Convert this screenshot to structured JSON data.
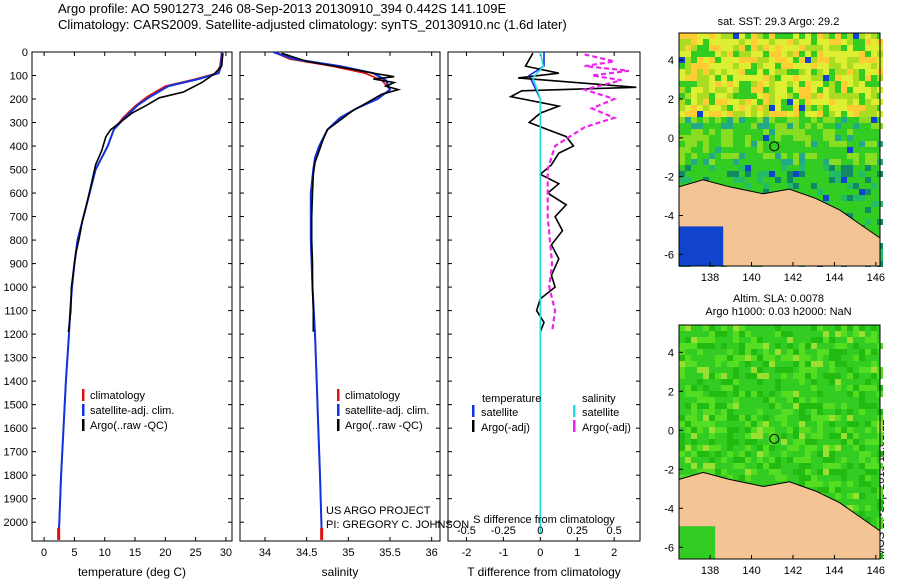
{
  "header": {
    "line1": "Argo profile: AO 5901273_246 08-Sep-2013 20130910_394 0.442S 141.109E",
    "line2": "Climatology: CARS2009. Satellite-adjusted climatology: synTS_20130910.nc (1.6d later)"
  },
  "colors": {
    "climatology": "#dd1111",
    "satellite": "#1133dd",
    "argo": "#000000",
    "sat_cyan": "#22dddd",
    "argo_magenta": "#ee22ee",
    "land": "#f5c495"
  },
  "chart_data": [
    {
      "type": "line",
      "xlabel": "temperature (deg C)",
      "ylabel": "",
      "xlim": [
        -2,
        31
      ],
      "ylim": [
        2080,
        0
      ],
      "x_ticks": [
        "0",
        "5",
        "10",
        "15",
        "20",
        "25",
        "30"
      ],
      "y_ticks": [
        "0",
        "100",
        "200",
        "300",
        "400",
        "500",
        "600",
        "700",
        "800",
        "900",
        "1000",
        "1100",
        "1200",
        "1300",
        "1400",
        "1500",
        "1600",
        "1700",
        "1800",
        "1900",
        "2000"
      ],
      "legend": [
        "climatology",
        "satellite-adj. clim.",
        "Argo(..raw -QC)"
      ],
      "series": [
        {
          "name": "climatology",
          "points": [
            [
              29.3,
              0
            ],
            [
              29,
              60
            ],
            [
              28.5,
              90
            ],
            [
              25,
              115
            ],
            [
              20,
              145
            ],
            [
              17,
              190
            ],
            [
              15,
              230
            ],
            [
              13,
              280
            ],
            [
              11.5,
              330
            ],
            [
              10.5,
              400
            ],
            [
              8.5,
              500
            ],
            [
              7.5,
              600
            ],
            [
              6.5,
              700
            ],
            [
              5.5,
              800
            ],
            [
              5,
              900
            ],
            [
              4.6,
              1000
            ],
            [
              4.3,
              1100
            ],
            [
              4.1,
              1200
            ],
            [
              3.6,
              1400
            ],
            [
              3.2,
              1600
            ],
            [
              2.8,
              1800
            ],
            [
              2.5,
              2000
            ],
            [
              2.4,
              2050
            ]
          ]
        },
        {
          "name": "satellite-adj. clim.",
          "points": [
            [
              29.3,
              0
            ],
            [
              29.2,
              60
            ],
            [
              28.8,
              90
            ],
            [
              25.5,
              115
            ],
            [
              20.5,
              145
            ],
            [
              17.5,
              190
            ],
            [
              15.5,
              225
            ],
            [
              13.3,
              280
            ],
            [
              11.5,
              330
            ],
            [
              10.5,
              400
            ],
            [
              8.5,
              500
            ],
            [
              7.5,
              600
            ],
            [
              6.5,
              700
            ],
            [
              5.5,
              800
            ],
            [
              5,
              900
            ],
            [
              4.6,
              1000
            ],
            [
              4.3,
              1100
            ],
            [
              4.1,
              1200
            ],
            [
              3.6,
              1400
            ],
            [
              3.2,
              1600
            ],
            [
              2.8,
              1800
            ],
            [
              2.5,
              2000
            ],
            [
              2.4,
              2050
            ]
          ]
        },
        {
          "name": "Argo(..raw -QC)",
          "points": [
            [
              29.5,
              5
            ],
            [
              29.3,
              60
            ],
            [
              28,
              95
            ],
            [
              26,
              130
            ],
            [
              23,
              170
            ],
            [
              19,
              195
            ],
            [
              17,
              225
            ],
            [
              14.5,
              260
            ],
            [
              12.5,
              300
            ],
            [
              11,
              330
            ],
            [
              10.2,
              360
            ],
            [
              9.5,
              420
            ],
            [
              8.5,
              480
            ],
            [
              7.8,
              560
            ],
            [
              7,
              650
            ],
            [
              6.3,
              720
            ],
            [
              5.8,
              790
            ],
            [
              5.3,
              850
            ],
            [
              5,
              900
            ],
            [
              4.7,
              960
            ],
            [
              4.5,
              1000
            ],
            [
              4.4,
              1100
            ],
            [
              4.2,
              1150
            ],
            [
              4,
              1190
            ]
          ]
        }
      ]
    },
    {
      "type": "line",
      "xlabel": "salinity",
      "ylabel": "",
      "xlim": [
        33.7,
        36.1
      ],
      "ylim": [
        2080,
        0
      ],
      "x_ticks": [
        "34",
        "34.5",
        "35",
        "35.5",
        "36"
      ],
      "legend": [
        "climatology",
        "satellite-adj. clim.",
        "Argo(..raw -QC)"
      ],
      "annotation": [
        "US ARGO PROJECT",
        "PI: GREGORY C. JOHNSON"
      ],
      "series": [
        {
          "name": "climatology",
          "points": [
            [
              34.1,
              0
            ],
            [
              34.3,
              30
            ],
            [
              34.8,
              60
            ],
            [
              35.2,
              90
            ],
            [
              35.4,
              120
            ],
            [
              35.5,
              160
            ],
            [
              35.35,
              200
            ],
            [
              35.1,
              240
            ],
            [
              34.9,
              280
            ],
            [
              34.75,
              330
            ],
            [
              34.65,
              400
            ],
            [
              34.6,
              450
            ],
            [
              34.58,
              500
            ],
            [
              34.55,
              600
            ],
            [
              34.55,
              800
            ],
            [
              34.57,
              1000
            ],
            [
              34.6,
              1200
            ],
            [
              34.62,
              1400
            ],
            [
              34.64,
              1600
            ],
            [
              34.66,
              1800
            ],
            [
              34.68,
              2050
            ]
          ]
        },
        {
          "name": "satellite-adj. clim.",
          "points": [
            [
              34.1,
              0
            ],
            [
              34.35,
              30
            ],
            [
              34.9,
              60
            ],
            [
              35.3,
              90
            ],
            [
              35.45,
              120
            ],
            [
              35.5,
              160
            ],
            [
              35.35,
              200
            ],
            [
              35.1,
              240
            ],
            [
              34.9,
              280
            ],
            [
              34.75,
              330
            ],
            [
              34.65,
              400
            ],
            [
              34.6,
              450
            ],
            [
              34.58,
              500
            ],
            [
              34.55,
              600
            ],
            [
              34.55,
              800
            ],
            [
              34.57,
              1000
            ],
            [
              34.6,
              1200
            ],
            [
              34.62,
              1400
            ],
            [
              34.64,
              1600
            ],
            [
              34.66,
              1800
            ],
            [
              34.68,
              2050
            ]
          ]
        },
        {
          "name": "Argo(..raw -QC)",
          "points": [
            [
              34.2,
              5
            ],
            [
              34.5,
              40
            ],
            [
              35,
              70
            ],
            [
              35.3,
              90
            ],
            [
              35.55,
              105
            ],
            [
              35.3,
              115
            ],
            [
              35.55,
              130
            ],
            [
              35.45,
              145
            ],
            [
              35.6,
              160
            ],
            [
              35.4,
              180
            ],
            [
              35.25,
              210
            ],
            [
              35.05,
              250
            ],
            [
              34.9,
              290
            ],
            [
              34.75,
              330
            ],
            [
              34.7,
              370
            ],
            [
              34.65,
              420
            ],
            [
              34.6,
              470
            ],
            [
              34.58,
              520
            ],
            [
              34.57,
              600
            ],
            [
              34.56,
              700
            ],
            [
              34.56,
              800
            ],
            [
              34.57,
              900
            ],
            [
              34.57,
              1000
            ],
            [
              34.58,
              1100
            ],
            [
              34.58,
              1190
            ]
          ]
        }
      ]
    },
    {
      "type": "line",
      "xlabel": "T difference from climatology",
      "xlabel2": "S difference from climatology",
      "xlim": [
        -2.5,
        2.7
      ],
      "ylim": [
        2080,
        0
      ],
      "x_ticks": [
        "-2",
        "-1",
        "0",
        "1",
        "2"
      ],
      "x_ticks2": [
        "-0.5",
        "-0.25",
        "0",
        "0.25",
        "0.5"
      ],
      "legend_temperature": [
        "temperature",
        "satellite",
        "Argo(-adj)"
      ],
      "legend_salinity": [
        "salinity",
        "satellite",
        "Argo(-adj)"
      ],
      "series": [
        {
          "name": "temperature satellite",
          "points": [
            [
              0.1,
              0
            ],
            [
              0.1,
              60
            ],
            [
              -0.3,
              100
            ],
            [
              0,
              200
            ],
            [
              0,
              400
            ],
            [
              0,
              2050
            ]
          ]
        },
        {
          "name": "temperature Argo(-adj)",
          "points": [
            [
              -0.2,
              5
            ],
            [
              -0.4,
              60
            ],
            [
              0.5,
              90
            ],
            [
              -0.6,
              110
            ],
            [
              2.6,
              150
            ],
            [
              -0.5,
              165
            ],
            [
              -0.8,
              190
            ],
            [
              0.5,
              230
            ],
            [
              0,
              260
            ],
            [
              -0.3,
              300
            ],
            [
              0.2,
              330
            ],
            [
              0.7,
              360
            ],
            [
              0.9,
              400
            ],
            [
              0.5,
              430
            ],
            [
              0.3,
              480
            ],
            [
              0,
              520
            ],
            [
              0.5,
              560
            ],
            [
              0.2,
              600
            ],
            [
              0.7,
              650
            ],
            [
              0.4,
              700
            ],
            [
              0.6,
              760
            ],
            [
              0.3,
              820
            ],
            [
              0.5,
              880
            ],
            [
              0.3,
              950
            ],
            [
              0.4,
              1000
            ],
            [
              0,
              1050
            ],
            [
              -0.1,
              1100
            ],
            [
              0.1,
              1150
            ],
            [
              0,
              1190
            ]
          ]
        },
        {
          "name": "salinity satellite",
          "points": [
            [
              0,
              0
            ],
            [
              0.02,
              60
            ],
            [
              -0.05,
              110
            ],
            [
              0,
              200
            ],
            [
              0,
              400
            ],
            [
              0,
              2050
            ]
          ]
        },
        {
          "name": "salinity Argo(-adj)",
          "points": [
            [
              0.3,
              10
            ],
            [
              0.5,
              40
            ],
            [
              0.3,
              60
            ],
            [
              0.6,
              80
            ],
            [
              0.35,
              100
            ],
            [
              0.55,
              120
            ],
            [
              0.3,
              160
            ],
            [
              0.5,
              200
            ],
            [
              0.35,
              240
            ],
            [
              0.5,
              280
            ],
            [
              0.3,
              320
            ],
            [
              0.2,
              360
            ],
            [
              0.1,
              400
            ],
            [
              0.05,
              500
            ],
            [
              0.05,
              700
            ],
            [
              0.08,
              900
            ],
            [
              0.06,
              1000
            ],
            [
              0.1,
              1100
            ],
            [
              0.08,
              1190
            ]
          ]
        }
      ]
    }
  ],
  "maps": [
    {
      "title": "sat. SST: 29.3 Argo: 29.2",
      "x_ticks": [
        "138",
        "140",
        "142",
        "144",
        "146"
      ],
      "y_ticks": [
        "4",
        "2",
        "0",
        "-2",
        "-4",
        "-6"
      ]
    },
    {
      "title": "Altim. SLA: 0.0078",
      "title2": "Argo h1000: 0.03 h2000: NaN",
      "x_ticks": [
        "138",
        "140",
        "142",
        "144",
        "146"
      ],
      "y_ticks": [
        "4",
        "2",
        "0",
        "-2",
        "-4",
        "-6"
      ]
    }
  ],
  "side_stamp": "IMOS 17-Sep-2013 12:01:12"
}
